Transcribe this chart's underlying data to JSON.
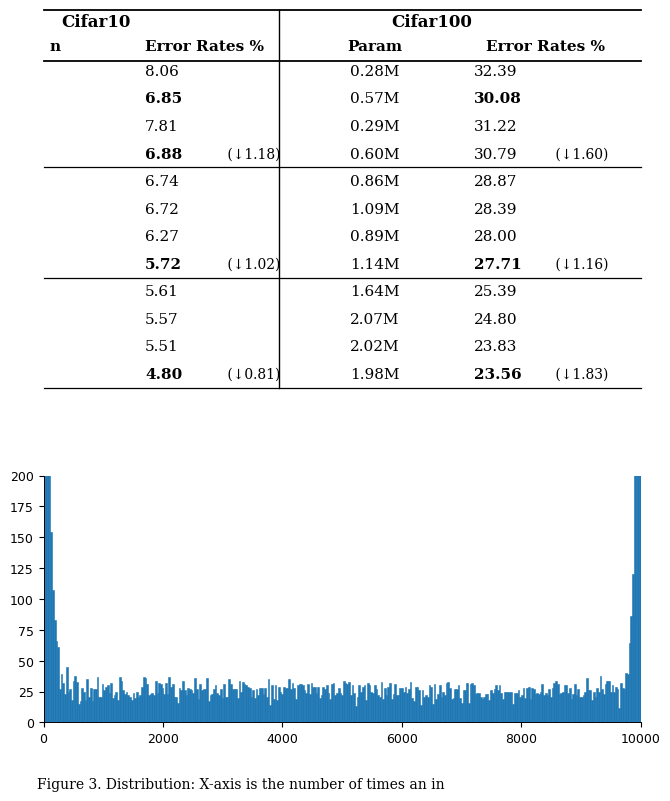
{
  "cifar10_header": "Cifar10",
  "cifar100_header": "Cifar100",
  "rows": [
    {
      "c10": "8.06",
      "c10_bold": false,
      "c10_suffix": "",
      "param": "0.28M",
      "c100": "32.39",
      "c100_bold": false,
      "c100_suffix": "",
      "group": 0
    },
    {
      "c10": "6.85",
      "c10_bold": true,
      "c10_suffix": "",
      "param": "0.57M",
      "c100": "30.08",
      "c100_bold": true,
      "c100_suffix": "",
      "group": 0
    },
    {
      "c10": "7.81",
      "c10_bold": false,
      "c10_suffix": "",
      "param": "0.29M",
      "c100": "31.22",
      "c100_bold": false,
      "c100_suffix": "",
      "group": 0
    },
    {
      "c10": "6.88",
      "c10_bold": true,
      "c10_suffix": " (↓1.18)",
      "param": "0.60M",
      "c100": "30.79",
      "c100_bold": false,
      "c100_suffix": " (↓1.60)",
      "group": 0
    },
    {
      "c10": "6.74",
      "c10_bold": false,
      "c10_suffix": "",
      "param": "0.86M",
      "c100": "28.87",
      "c100_bold": false,
      "c100_suffix": "",
      "group": 1
    },
    {
      "c10": "6.72",
      "c10_bold": false,
      "c10_suffix": "",
      "param": "1.09M",
      "c100": "28.39",
      "c100_bold": false,
      "c100_suffix": "",
      "group": 1
    },
    {
      "c10": "6.27",
      "c10_bold": false,
      "c10_suffix": "",
      "param": "0.89M",
      "c100": "28.00",
      "c100_bold": false,
      "c100_suffix": "",
      "group": 1
    },
    {
      "c10": "5.72",
      "c10_bold": true,
      "c10_suffix": " (↓1.02)",
      "param": "1.14M",
      "c100": "27.71",
      "c100_bold": true,
      "c100_suffix": " (↓1.16)",
      "group": 1
    },
    {
      "c10": "5.61",
      "c10_bold": false,
      "c10_suffix": "",
      "param": "1.64M",
      "c100": "25.39",
      "c100_bold": false,
      "c100_suffix": "",
      "group": 2
    },
    {
      "c10": "5.57",
      "c10_bold": false,
      "c10_suffix": "",
      "param": "2.07M",
      "c100": "24.80",
      "c100_bold": false,
      "c100_suffix": "",
      "group": 2
    },
    {
      "c10": "5.51",
      "c10_bold": false,
      "c10_suffix": "",
      "param": "2.02M",
      "c100": "23.83",
      "c100_bold": false,
      "c100_suffix": "",
      "group": 2
    },
    {
      "c10": "4.80",
      "c10_bold": true,
      "c10_suffix": " (↓0.81)",
      "param": "1.98M",
      "c100": "23.56",
      "c100_bold": true,
      "c100_suffix": " (↓1.83)",
      "group": 2
    }
  ],
  "hist_color": "#1f77b4",
  "hist_yticks": [
    0,
    25,
    50,
    75,
    100,
    125,
    150,
    175,
    200
  ],
  "hist_xticks": [
    0,
    2000,
    4000,
    6000,
    8000,
    10000
  ],
  "fig_caption": "Figure 3. Distribution: X-axis is the number of times an in",
  "background_color": "#ffffff"
}
